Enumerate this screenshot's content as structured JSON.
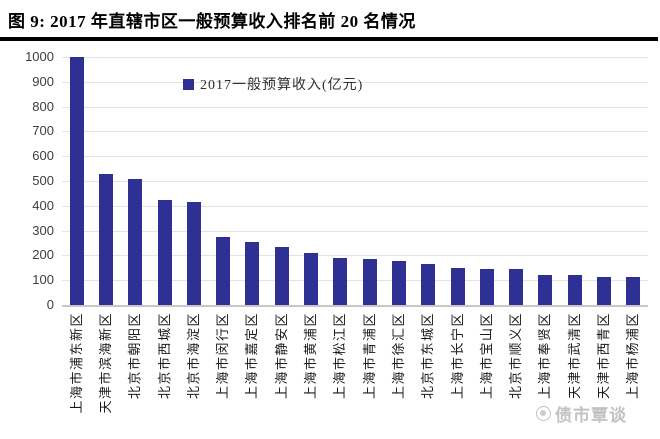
{
  "figure": {
    "title": "图 9: 2017 年直辖市区一般预算收入排名前 20 名情况",
    "watermark_text": "债市覃谈"
  },
  "chart_data": {
    "type": "bar",
    "title": "图 9: 2017 年直辖市区一般预算收入排名前 20 名情况",
    "legend": [
      {
        "label": "2017一般预算收入(亿元)",
        "color": "#2e3193"
      }
    ],
    "legend_position": "top-center",
    "categories": [
      "上海市浦东新区",
      "天津市滨海新区",
      "北京市朝阳区",
      "北京市西城区",
      "北京市海淀区",
      "上海市闵行区",
      "上海市嘉定区",
      "上海市静安区",
      "上海市黄浦区",
      "上海市松江区",
      "上海市青浦区",
      "上海市徐汇区",
      "北京市东城区",
      "上海市长宁区",
      "上海市宝山区",
      "北京市顺义区",
      "上海市奉贤区",
      "天津市武清区",
      "天津市西青区",
      "上海市杨浦区"
    ],
    "values": [
      1000,
      530,
      507,
      425,
      417,
      275,
      253,
      233,
      209,
      189,
      185,
      177,
      166,
      150,
      146,
      145,
      123,
      122,
      114,
      112
    ],
    "xlabel": "",
    "ylabel": "",
    "ylim": [
      0,
      1000
    ],
    "yticks": [
      0,
      100,
      200,
      300,
      400,
      500,
      600,
      700,
      800,
      900,
      1000
    ],
    "x_label_rotation": -90,
    "grid": true
  },
  "colors": {
    "bar": "#2e3193",
    "grid_line": "#e4e4e4",
    "axis_line": "#c8c8c8",
    "title_rule": "#000000",
    "y_tick_text": "#3d3d3d",
    "x_tick_text": "#1a1a1a",
    "watermark": "#b8b8b8"
  }
}
